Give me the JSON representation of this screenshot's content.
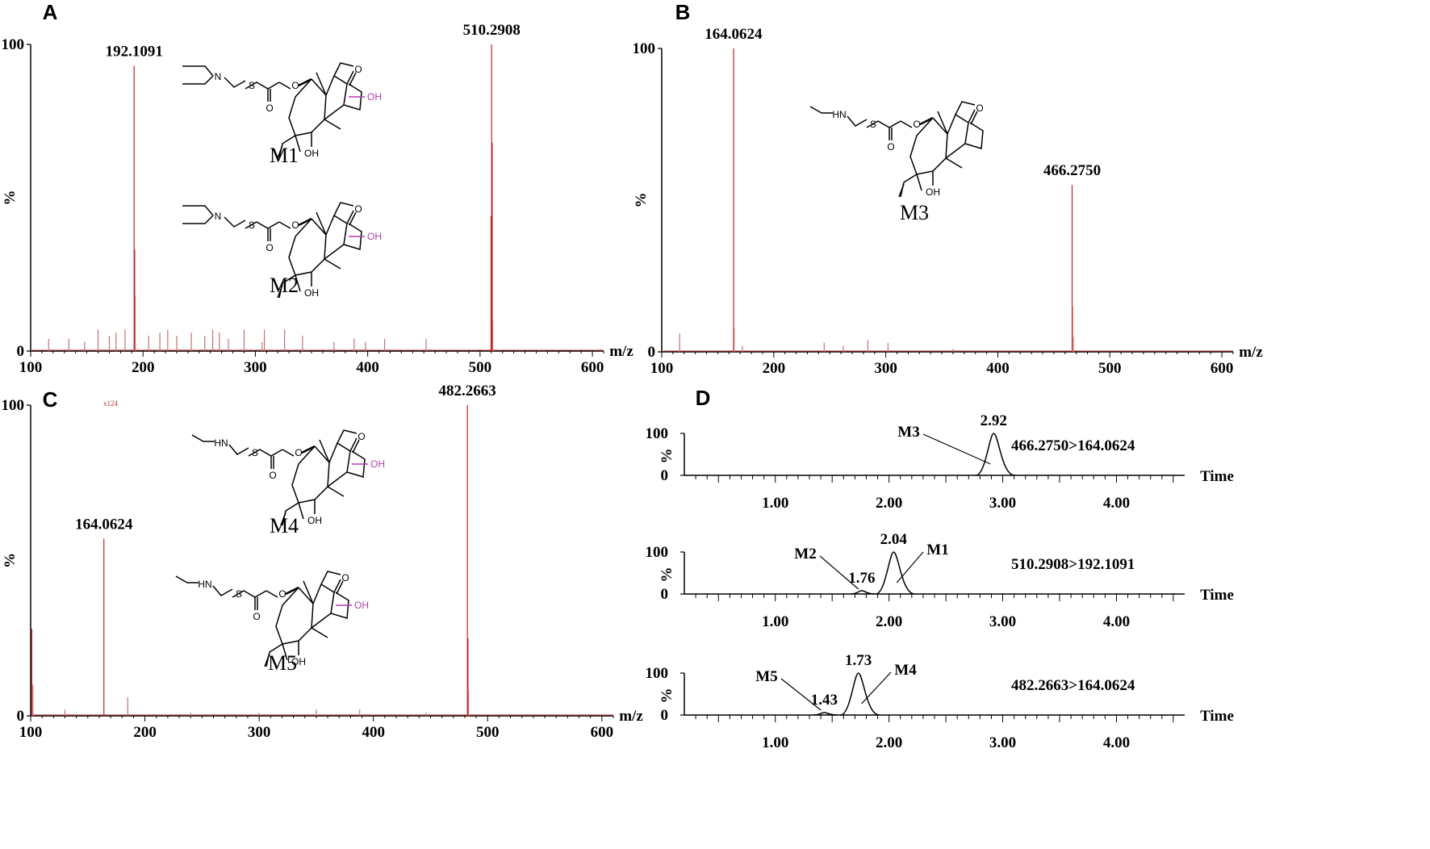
{
  "figure": {
    "panels": [
      {
        "id": "A",
        "letter": "A",
        "mlabels": [
          "M1",
          "M2"
        ]
      },
      {
        "id": "B",
        "letter": "B",
        "mlabels": [
          "M3"
        ]
      },
      {
        "id": "C",
        "letter": "C",
        "mlabels": [
          "M4",
          "M5"
        ],
        "scale_note": "x124"
      },
      {
        "id": "D",
        "letter": "D"
      }
    ],
    "chem_text": {
      "N": "N",
      "HN": "HN",
      "S": "S",
      "O": "O",
      "OH": "OH"
    }
  },
  "chart_data": [
    {
      "id": "A",
      "type": "bar",
      "title": "",
      "xlabel": "m/z",
      "ylabel": "%",
      "xlim": [
        100,
        610
      ],
      "ylim": [
        0,
        100
      ],
      "xticks": [
        100,
        200,
        300,
        400,
        500,
        600
      ],
      "yticks": [
        0,
        100
      ],
      "labeled_peaks": [
        {
          "x": 192.1091,
          "y": 93,
          "label": "192.1091"
        },
        {
          "x": 510.2908,
          "y": 100,
          "label": "510.2908"
        }
      ],
      "peaks": [
        {
          "x": 192.1,
          "y": 93
        },
        {
          "x": 192.6,
          "y": 33
        },
        {
          "x": 193.1,
          "y": 18
        },
        {
          "x": 509.8,
          "y": 44
        },
        {
          "x": 510.3,
          "y": 100
        },
        {
          "x": 510.8,
          "y": 68
        },
        {
          "x": 511.3,
          "y": 10
        },
        {
          "x": 116,
          "y": 4
        },
        {
          "x": 134,
          "y": 4
        },
        {
          "x": 148,
          "y": 3
        },
        {
          "x": 160,
          "y": 7
        },
        {
          "x": 170,
          "y": 5
        },
        {
          "x": 176,
          "y": 6
        },
        {
          "x": 184,
          "y": 7
        },
        {
          "x": 205,
          "y": 5
        },
        {
          "x": 215,
          "y": 6
        },
        {
          "x": 222,
          "y": 7
        },
        {
          "x": 230,
          "y": 5
        },
        {
          "x": 243,
          "y": 6
        },
        {
          "x": 255,
          "y": 5
        },
        {
          "x": 262,
          "y": 7
        },
        {
          "x": 268,
          "y": 6
        },
        {
          "x": 276,
          "y": 4
        },
        {
          "x": 290,
          "y": 7
        },
        {
          "x": 306,
          "y": 3
        },
        {
          "x": 308,
          "y": 7
        },
        {
          "x": 326,
          "y": 7
        },
        {
          "x": 342,
          "y": 5
        },
        {
          "x": 370,
          "y": 3
        },
        {
          "x": 388,
          "y": 4
        },
        {
          "x": 398,
          "y": 3
        },
        {
          "x": 415,
          "y": 4
        },
        {
          "x": 452,
          "y": 4
        }
      ]
    },
    {
      "id": "B",
      "type": "bar",
      "title": "",
      "xlabel": "m/z",
      "ylabel": "%",
      "xlim": [
        100,
        610
      ],
      "ylim": [
        0,
        100
      ],
      "xticks": [
        100,
        200,
        300,
        400,
        500,
        600
      ],
      "yticks": [
        0,
        100
      ],
      "labeled_peaks": [
        {
          "x": 164.0624,
          "y": 100,
          "label": "164.0624"
        },
        {
          "x": 466.275,
          "y": 55,
          "label": "466.2750"
        }
      ],
      "peaks": [
        {
          "x": 164.1,
          "y": 100
        },
        {
          "x": 164.6,
          "y": 8
        },
        {
          "x": 466.3,
          "y": 55
        },
        {
          "x": 466.8,
          "y": 15
        },
        {
          "x": 467.3,
          "y": 5
        },
        {
          "x": 116,
          "y": 6
        },
        {
          "x": 172,
          "y": 2
        },
        {
          "x": 245,
          "y": 3
        },
        {
          "x": 262,
          "y": 2
        },
        {
          "x": 284,
          "y": 4
        },
        {
          "x": 302,
          "y": 3
        },
        {
          "x": 360,
          "y": 1
        }
      ]
    },
    {
      "id": "C",
      "type": "bar",
      "title": "",
      "xlabel": "m/z",
      "ylabel": "%",
      "xlim": [
        100,
        610
      ],
      "ylim": [
        0,
        100
      ],
      "xticks": [
        100,
        200,
        300,
        400,
        500,
        600
      ],
      "yticks": [
        0,
        100
      ],
      "labeled_peaks": [
        {
          "x": 164.0624,
          "y": 57,
          "label": "164.0624"
        },
        {
          "x": 482.2663,
          "y": 100,
          "label": "482.2663"
        }
      ],
      "peaks": [
        {
          "x": 164.1,
          "y": 57
        },
        {
          "x": 482.3,
          "y": 100
        },
        {
          "x": 482.8,
          "y": 25
        },
        {
          "x": 483.3,
          "y": 8
        },
        {
          "x": 101,
          "y": 28
        },
        {
          "x": 102,
          "y": 10
        },
        {
          "x": 185,
          "y": 6
        },
        {
          "x": 130,
          "y": 2
        },
        {
          "x": 240,
          "y": 1
        },
        {
          "x": 300,
          "y": 1
        },
        {
          "x": 350,
          "y": 2
        },
        {
          "x": 388,
          "y": 2
        },
        {
          "x": 446,
          "y": 1
        }
      ]
    },
    {
      "id": "D",
      "type": "line",
      "title": "",
      "xlabel": "Time",
      "xlim": [
        0.2,
        4.6
      ],
      "xticks": [
        1.0,
        2.0,
        3.0,
        4.0
      ],
      "xtick_labels": [
        "1.00",
        "2.00",
        "3.00",
        "4.00"
      ],
      "traces": [
        {
          "name": "466.2750>164.0624",
          "ylabel": "%",
          "ylim": [
            0,
            100
          ],
          "yticks": [
            0,
            100
          ],
          "peaks": [
            {
              "rt": 2.92,
              "height": 100,
              "label": "2.92",
              "compound": "M3"
            }
          ]
        },
        {
          "name": "510.2908>192.1091",
          "ylabel": "%",
          "ylim": [
            0,
            100
          ],
          "yticks": [
            0,
            100
          ],
          "peaks": [
            {
              "rt": 2.04,
              "height": 100,
              "label": "2.04",
              "compound": "M1"
            },
            {
              "rt": 1.76,
              "height": 8,
              "label": "1.76",
              "compound": "M2"
            }
          ]
        },
        {
          "name": "482.2663>164.0624",
          "ylabel": "%",
          "ylim": [
            0,
            100
          ],
          "yticks": [
            0,
            100
          ],
          "peaks": [
            {
              "rt": 1.73,
              "height": 100,
              "label": "1.73",
              "compound": "M4"
            },
            {
              "rt": 1.43,
              "height": 6,
              "label": "1.43",
              "compound": "M5"
            }
          ]
        }
      ]
    }
  ]
}
